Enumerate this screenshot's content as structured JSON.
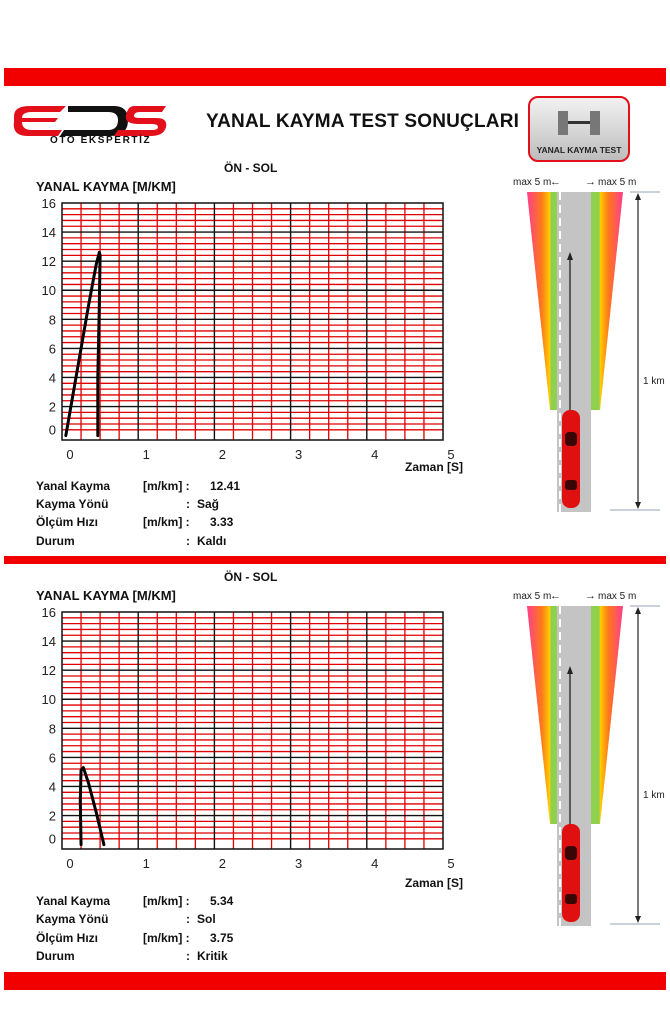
{
  "header": {
    "logo_text": "EDS",
    "logo_subtitle": "OTO EKSPERTİZ",
    "title": "YANAL KAYMA TEST SONUÇLARI",
    "badge_label": "YANAL KAYMA TEST"
  },
  "colors": {
    "accent": "#f20000",
    "grid_minor": "#e00000",
    "grid_major": "#111111",
    "curve": "#000000"
  },
  "sections": [
    {
      "section_title": "ÖN - SOL",
      "info": [
        {
          "label": "Yanal Kayma",
          "unit": "[m/km] :",
          "value": "12.41"
        },
        {
          "label": "Kayma Yönü",
          "unit": ":",
          "value": "Sağ"
        },
        {
          "label": "Ölçüm Hızı",
          "unit": "[m/km] :",
          "value": "3.33"
        },
        {
          "label": "Durum",
          "unit": ":",
          "value": "Kaldı"
        }
      ],
      "diagram": {
        "left_label": "max 5 m",
        "right_label": "max 5 m",
        "distance_label": "1 km"
      }
    },
    {
      "section_title": "ÖN - SOL",
      "info": [
        {
          "label": "Yanal Kayma",
          "unit": "[m/km] :",
          "value": "5.34"
        },
        {
          "label": "Kayma Yönü",
          "unit": ":",
          "value": "Sol"
        },
        {
          "label": "Ölçüm Hızı",
          "unit": "[m/km] :",
          "value": "3.75"
        },
        {
          "label": "Durum",
          "unit": ":",
          "value": "Kritik"
        }
      ],
      "diagram": {
        "left_label": "max 5 m",
        "right_label": "max 5 m",
        "distance_label": "1 km"
      }
    }
  ],
  "chart_data": [
    {
      "type": "line",
      "title": "ÖN - SOL",
      "ylabel": "YANAL KAYMA [M/KM]",
      "xlabel": "Zaman [S]",
      "xlim": [
        0,
        5
      ],
      "ylim": [
        0,
        16
      ],
      "xticks": [
        "0",
        "1",
        "2",
        "3",
        "4",
        "5"
      ],
      "yticks": [
        "0",
        "2",
        "4",
        "6",
        "8",
        "10",
        "12",
        "14",
        "16"
      ],
      "grid": true,
      "series": [
        {
          "x": [
            0.05,
            0.2,
            0.35,
            0.45,
            0.49,
            0.5,
            0.49,
            0.47,
            0.47
          ],
          "y": [
            0,
            4.5,
            9,
            11.8,
            12.6,
            12.4,
            9,
            4,
            0
          ]
        }
      ]
    },
    {
      "type": "line",
      "title": "ÖN - SOL",
      "ylabel": "YANAL KAYMA [M/KM]",
      "xlabel": "Zaman [S]",
      "xlim": [
        0,
        5
      ],
      "ylim": [
        0,
        16
      ],
      "xticks": [
        "0",
        "1",
        "2",
        "3",
        "4",
        "5"
      ],
      "yticks": [
        "0",
        "2",
        "4",
        "6",
        "8",
        "10",
        "12",
        "14",
        "16"
      ],
      "grid": true,
      "series": [
        {
          "x": [
            0.25,
            0.24,
            0.25,
            0.28,
            0.35,
            0.45,
            0.55
          ],
          "y": [
            0,
            3,
            5.1,
            5.3,
            4.2,
            2.2,
            0
          ]
        }
      ]
    }
  ]
}
